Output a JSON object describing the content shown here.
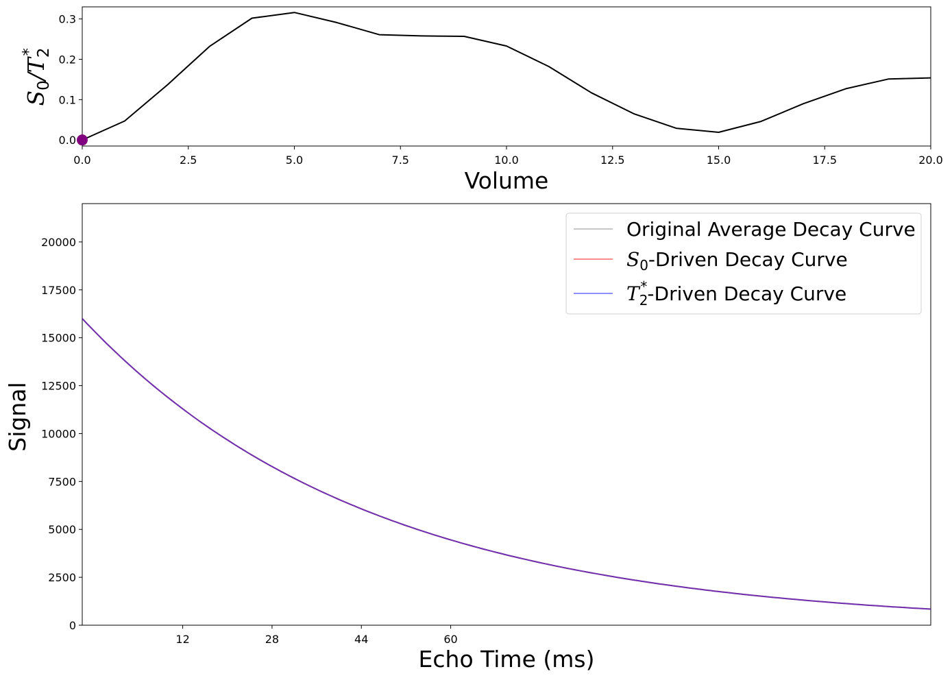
{
  "chart_data": [
    {
      "type": "line",
      "title": "",
      "xlabel": "Volume",
      "ylabel": {
        "base": "S",
        "sub0": "0",
        "slash": "/",
        "base2": "T",
        "sub2": "2",
        "sup2": "*"
      },
      "xlim": [
        0,
        20
      ],
      "ylim": [
        -0.015,
        0.33
      ],
      "xticks": [
        "0.0",
        "2.5",
        "5.0",
        "7.5",
        "10.0",
        "12.5",
        "15.0",
        "17.5",
        "20.0"
      ],
      "xtick_values": [
        0,
        2.5,
        5,
        7.5,
        10,
        12.5,
        15,
        17.5,
        20
      ],
      "yticks": [
        "0.0",
        "0.1",
        "0.2",
        "0.3"
      ],
      "ytick_values": [
        0,
        0.1,
        0.2,
        0.3
      ],
      "grid": false,
      "series": [
        {
          "color": "#000000",
          "x": [
            0,
            1,
            2,
            3,
            4,
            5,
            6,
            7,
            8,
            9,
            10,
            11,
            12,
            13,
            14,
            15,
            16,
            17,
            18,
            19,
            20
          ],
          "values": [
            0.0,
            0.047,
            0.136,
            0.232,
            0.302,
            0.316,
            0.291,
            0.261,
            0.258,
            0.257,
            0.233,
            0.182,
            0.117,
            0.065,
            0.029,
            0.019,
            0.046,
            0.09,
            0.127,
            0.151,
            0.154
          ]
        }
      ],
      "marker": {
        "x": 0,
        "y": 0,
        "color": "#800080"
      }
    },
    {
      "type": "line",
      "title": "",
      "xlabel": "Echo Time (ms)",
      "ylabel": "Signal",
      "xlim": [
        -6,
        146
      ],
      "ylim": [
        0,
        22000
      ],
      "xticks": [
        "12",
        "28",
        "44",
        "60"
      ],
      "xtick_values": [
        12,
        28,
        44,
        60
      ],
      "yticks": [
        "0",
        "2500",
        "5000",
        "7500",
        "10000",
        "12500",
        "15000",
        "17500",
        "20000"
      ],
      "ytick_values": [
        0,
        2500,
        5000,
        7500,
        10000,
        12500,
        15000,
        17500,
        20000
      ],
      "grid": false,
      "legend_position": "upper-right",
      "series": [
        {
          "name": {
            "text": "Original Average Decay Curve"
          },
          "color": "#808080",
          "s0": 16000,
          "t2star": 51.6,
          "x_start": -6,
          "x_end": 146
        },
        {
          "name": {
            "base": "S",
            "sub": "0",
            "text": "-Driven Decay Curve"
          },
          "color": "#ff0000",
          "s0": 16000,
          "t2star": 51.6,
          "x_start": -6,
          "x_end": 146
        },
        {
          "name": {
            "base": "T",
            "sub": "2",
            "sup": "*",
            "text": "-Driven Decay Curve"
          },
          "color": "#0000ff",
          "s0": 16000,
          "t2star": 51.6,
          "x_start": -6,
          "x_end": 146
        }
      ],
      "overlap_color": "#5a1aa6"
    }
  ]
}
